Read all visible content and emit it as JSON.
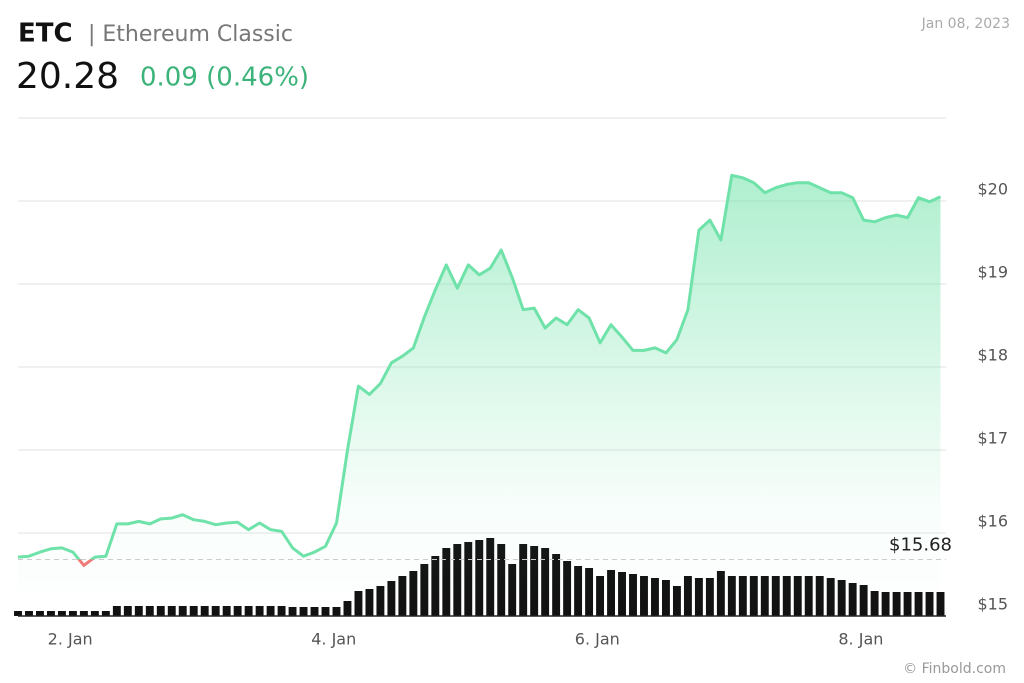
{
  "header": {
    "symbol": "ETC",
    "name": "| Ethereum Classic",
    "price": "20.28",
    "change": "0.09 (0.46%)",
    "date": "Jan 08, 2023",
    "credit": "© Finbold.com"
  },
  "chart_data": {
    "type": "line",
    "x": [
      0,
      1,
      2,
      3,
      4,
      5,
      6,
      7,
      8,
      9,
      10,
      11,
      12,
      13,
      14,
      15,
      16,
      17,
      18,
      19,
      20,
      21,
      22,
      23,
      24,
      25,
      26,
      27,
      28,
      29,
      30,
      31,
      32,
      33,
      34,
      35,
      36,
      37,
      38,
      39,
      40,
      41,
      42,
      43,
      44,
      45,
      46,
      47,
      48,
      49,
      50,
      51,
      52,
      53,
      54,
      55,
      56,
      57,
      58,
      59,
      60,
      61,
      62,
      63,
      64,
      65,
      66,
      67,
      68,
      69,
      70,
      71,
      72,
      73,
      74,
      75,
      76,
      77,
      78,
      79,
      80,
      81,
      82,
      83,
      84
    ],
    "series": [
      {
        "name": "ETC",
        "color": "#6ee2a8",
        "values": [
          15.71,
          15.72,
          15.77,
          15.81,
          15.82,
          15.77,
          15.61,
          15.71,
          15.72,
          16.11,
          16.11,
          16.14,
          16.11,
          16.17,
          16.18,
          16.22,
          16.16,
          16.14,
          16.1,
          16.12,
          16.13,
          16.04,
          16.12,
          16.04,
          16.02,
          15.82,
          15.72,
          15.77,
          15.84,
          16.12,
          17.0,
          17.77,
          17.67,
          17.8,
          18.05,
          18.13,
          18.23,
          18.6,
          18.93,
          19.23,
          18.95,
          19.23,
          19.11,
          19.19,
          19.41,
          19.08,
          18.69,
          18.71,
          18.47,
          18.59,
          18.51,
          18.69,
          18.59,
          18.29,
          18.51,
          18.36,
          18.2,
          18.2,
          18.23,
          18.17,
          18.33,
          18.69,
          19.65,
          19.77,
          19.53,
          20.31,
          20.28,
          20.22,
          20.1,
          20.16,
          20.2,
          20.22,
          20.22,
          20.16,
          20.1,
          20.1,
          20.04,
          19.77,
          19.75,
          19.8,
          19.83,
          19.8,
          20.04,
          19.99,
          20.05
        ]
      },
      {
        "name": "Volume",
        "color": "#111111",
        "values": [
          5,
          5,
          5,
          5,
          5,
          5,
          5,
          5,
          5,
          10,
          10,
          10,
          10,
          10,
          10,
          10,
          10,
          10,
          10,
          10,
          10,
          10,
          10,
          10,
          10,
          9,
          9,
          9,
          9,
          9,
          15,
          25,
          27,
          30,
          35,
          40,
          45,
          52,
          60,
          68,
          72,
          74,
          76,
          78,
          72,
          52,
          72,
          70,
          68,
          62,
          55,
          50,
          48,
          40,
          46,
          44,
          42,
          40,
          38,
          36,
          30,
          40,
          38,
          38,
          45,
          40,
          40,
          40,
          40,
          40,
          40,
          40,
          40,
          40,
          38,
          36,
          33,
          31,
          25,
          24,
          24,
          24,
          24,
          24,
          24
        ]
      }
    ],
    "xlim": [
      0,
      84.5
    ],
    "xticks": [
      {
        "value": 4.75,
        "label": "2. Jan"
      },
      {
        "value": 28.75,
        "label": "4. Jan"
      },
      {
        "value": 52.75,
        "label": "6. Jan"
      },
      {
        "value": 76.75,
        "label": "8. Jan"
      }
    ],
    "ylim": [
      15,
      21
    ],
    "yticks": [
      {
        "value": 15,
        "label": "$15"
      },
      {
        "value": 16,
        "label": "$16"
      },
      {
        "value": 17,
        "label": "$17"
      },
      {
        "value": 18,
        "label": "$18"
      },
      {
        "value": 19,
        "label": "$19"
      },
      {
        "value": 20,
        "label": "$20"
      }
    ],
    "volume_lim": [
      0,
      100
    ],
    "baseline": {
      "value": 15.68,
      "label": "$15.68"
    },
    "below_color": "#f07a78",
    "grid": true
  }
}
